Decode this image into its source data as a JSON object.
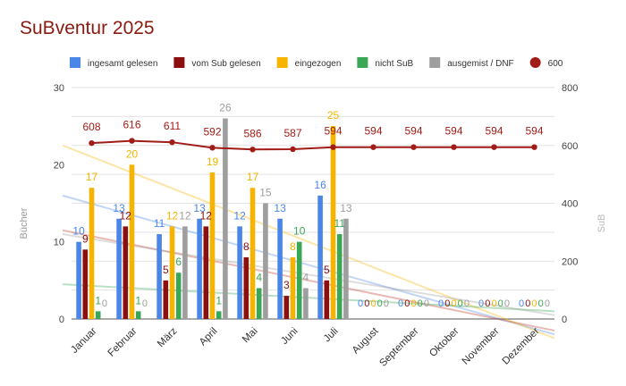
{
  "chart_data": {
    "type": "bar",
    "title": "SuBventur 2025",
    "ylabel_left": "Bücher",
    "ylabel_right": "SuB",
    "ylim_left": [
      0,
      30
    ],
    "ylim_right": [
      0,
      800
    ],
    "yticks_left": [
      "0",
      "10",
      "20",
      "30"
    ],
    "yticks_right": [
      "0",
      "200",
      "400",
      "600",
      "800"
    ],
    "grid": true,
    "legend_position": "top",
    "categories": [
      "Januar",
      "Februar",
      "März",
      "April",
      "Mai",
      "Juni",
      "Juli",
      "August",
      "September",
      "Oktober",
      "November",
      "Dezember"
    ],
    "series": [
      {
        "name": "ingesamt gelesen",
        "color": "#4a86e8",
        "axis": "left",
        "values": [
          10,
          13,
          11,
          13,
          12,
          13,
          16,
          0,
          0,
          0,
          0,
          0
        ]
      },
      {
        "name": "vom Sub gelesen",
        "color": "#8b0f0f",
        "axis": "left",
        "values": [
          9,
          12,
          5,
          12,
          8,
          3,
          5,
          0,
          0,
          0,
          0,
          0
        ]
      },
      {
        "name": "eingezogen",
        "color": "#f6b400",
        "axis": "left",
        "values": [
          17,
          20,
          12,
          19,
          17,
          8,
          25,
          0,
          0,
          0,
          0,
          0
        ]
      },
      {
        "name": "nicht SuB",
        "color": "#3aa757",
        "axis": "left",
        "values": [
          1,
          1,
          6,
          1,
          4,
          10,
          11,
          0,
          0,
          0,
          0,
          0
        ]
      },
      {
        "name": "ausgemist / DNF",
        "color": "#9e9e9e",
        "axis": "left",
        "values": [
          0,
          0,
          12,
          26,
          15,
          4,
          13,
          0,
          0,
          0,
          0,
          0
        ]
      },
      {
        "name": "600",
        "color": "#a21c17",
        "axis": "right",
        "type": "line",
        "values": [
          608,
          616,
          611,
          592,
          586,
          587,
          594,
          594,
          594,
          594,
          594,
          594
        ]
      }
    ],
    "trendlines": [
      {
        "series": "ingesamt gelesen",
        "color": "#4a86e8",
        "start": 16,
        "end": -2
      },
      {
        "series": "vom Sub gelesen",
        "color": "#c0392b",
        "start": 11.5,
        "end": -1.5
      },
      {
        "series": "eingezogen",
        "color": "#f6b400",
        "start": 22.5,
        "end": -2.5
      },
      {
        "series": "nicht SuB",
        "color": "#3aa757",
        "start": 4.5,
        "end": 1
      },
      {
        "series": "ausgemist / DNF",
        "color": "#9e9e9e",
        "start": 11,
        "end": 0.5
      }
    ],
    "zero_label": "0"
  }
}
